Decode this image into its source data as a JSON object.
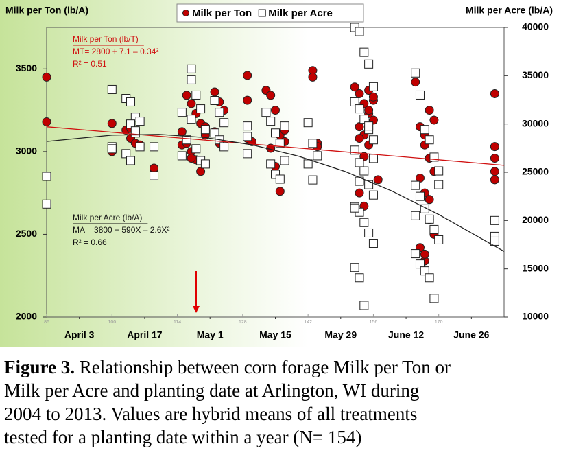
{
  "chart_data": {
    "type": "scatter",
    "y_title": "Milk per Ton (lb/A)",
    "y2_title": "Milk per Acre (lb/A)",
    "xlim": [
      86,
      184
    ],
    "xticks": [
      86,
      100,
      114,
      128,
      142,
      156,
      170
    ],
    "date_ticks": [
      {
        "value": 93,
        "label": "April 3"
      },
      {
        "value": 107,
        "label": "April 17"
      },
      {
        "value": 121,
        "label": "May 1"
      },
      {
        "value": 135,
        "label": "May 15"
      },
      {
        "value": 149,
        "label": "May 29"
      },
      {
        "value": 163,
        "label": "June 12"
      },
      {
        "value": 177,
        "label": "June 26"
      }
    ],
    "ylim": [
      2000,
      3750
    ],
    "yticks": [
      2000,
      2500,
      3000,
      3500
    ],
    "y2lim": [
      10000,
      40000
    ],
    "y2ticks": [
      10000,
      15000,
      20000,
      25000,
      30000,
      35000,
      40000
    ],
    "legend": "top",
    "series": [
      {
        "name": "Milk per Ton",
        "color": "#c00000",
        "marker": "circle",
        "axis": "y",
        "x": [
          86,
          86,
          100,
          100,
          103,
          104,
          105,
          104,
          106,
          109,
          109,
          115,
          115,
          116,
          117,
          118,
          119,
          120,
          116,
          117,
          118,
          119,
          120,
          117,
          122,
          123,
          124,
          122,
          123,
          129,
          129,
          129,
          130,
          133,
          134,
          135,
          136,
          137,
          134,
          135,
          136,
          137,
          143,
          143,
          144,
          144,
          152,
          153,
          154,
          155,
          156,
          153,
          154,
          155,
          156,
          157,
          153,
          154,
          155,
          156,
          153,
          154,
          155,
          156,
          165,
          166,
          167,
          168,
          169,
          166,
          167,
          168,
          169,
          166,
          167,
          168,
          169,
          167,
          168,
          167,
          182,
          182,
          182,
          182,
          182
        ],
        "values": [
          3450,
          3180,
          3170,
          3000,
          3130,
          3080,
          3050,
          3140,
          3040,
          2890,
          2900,
          3120,
          3040,
          3340,
          3290,
          3230,
          3170,
          3100,
          3050,
          3000,
          2950,
          2880,
          3150,
          2960,
          3360,
          3300,
          3250,
          3120,
          3050,
          3460,
          3310,
          3080,
          3060,
          3370,
          3340,
          3250,
          3100,
          3060,
          3020,
          2910,
          2760,
          3130,
          3490,
          3450,
          3050,
          3030,
          3390,
          3350,
          3290,
          3230,
          3190,
          3150,
          3100,
          3040,
          2960,
          2830,
          2750,
          2670,
          3250,
          3310,
          3080,
          2970,
          3370,
          3330,
          3420,
          3150,
          3040,
          2960,
          2880,
          2840,
          2750,
          2590,
          2500,
          2420,
          2340,
          3250,
          3190,
          3100,
          2710,
          2380,
          3350,
          3030,
          2960,
          2830,
          2880
        ]
      },
      {
        "name": "Milk per Acre",
        "color": "#ffffff",
        "marker": "square",
        "axis": "y2",
        "x": [
          86,
          86,
          100,
          100,
          100,
          103,
          104,
          105,
          106,
          104,
          105,
          106,
          103,
          104,
          105,
          109,
          109,
          115,
          115,
          117,
          117,
          118,
          119,
          120,
          116,
          118,
          119,
          120,
          117,
          122,
          123,
          124,
          122,
          123,
          124,
          129,
          129,
          129,
          133,
          134,
          135,
          136,
          137,
          134,
          135,
          136,
          137,
          142,
          143,
          144,
          142,
          143,
          152,
          153,
          154,
          155,
          156,
          152,
          153,
          154,
          155,
          156,
          152,
          153,
          154,
          155,
          156,
          152,
          153,
          154,
          155,
          156,
          152,
          153,
          154,
          155,
          156,
          152,
          153,
          165,
          166,
          167,
          168,
          169,
          170,
          165,
          166,
          167,
          168,
          169,
          170,
          165,
          166,
          167,
          168,
          169,
          170,
          165,
          182,
          182,
          182
        ],
        "values": [
          24570,
          21710,
          33570,
          27640,
          27430,
          32640,
          32290,
          30710,
          30290,
          30000,
          29070,
          27640,
          26930,
          26210,
          29290,
          27640,
          24640,
          31210,
          26710,
          35710,
          34570,
          33000,
          31570,
          29430,
          28360,
          27430,
          26210,
          25860,
          30500,
          32430,
          31210,
          30140,
          29070,
          28360,
          27640,
          29790,
          28710,
          26930,
          31210,
          30290,
          29070,
          28000,
          26210,
          25860,
          24790,
          24290,
          29790,
          30140,
          28000,
          26710,
          25860,
          24210,
          40000,
          39570,
          37430,
          36210,
          33860,
          32290,
          31570,
          30500,
          29430,
          28360,
          27290,
          26000,
          25140,
          23710,
          22640,
          21430,
          20860,
          19790,
          18710,
          17640,
          15140,
          14070,
          11210,
          29790,
          26430,
          21290,
          24070,
          35290,
          33000,
          29430,
          28360,
          26570,
          25140,
          23640,
          22500,
          21210,
          20140,
          19070,
          18000,
          16570,
          15500,
          14790,
          14070,
          11930,
          23710,
          20500,
          20000,
          18360,
          17860
        ]
      },
      {
        "color": "#d01010",
        "marker": "line",
        "axis": "y",
        "x": [
          86,
          184
        ],
        "values": [
          3150,
          2917
        ]
      },
      {
        "color": "#222222",
        "marker": "line",
        "axis": "y2",
        "x": [
          86,
          100,
          110,
          120,
          130,
          140,
          150,
          160,
          170,
          184
        ],
        "values": [
          28190,
          28850,
          28930,
          28600,
          27840,
          26660,
          25070,
          23050,
          20620,
          16800
        ]
      }
    ],
    "annotations": [
      {
        "color": "#d01010",
        "lines": [
          "Milk per Ton (lb/T)",
          "MT= 2800 + 7.1 – 0.34²",
          "R² = 0.51"
        ]
      },
      {
        "color": "#111111",
        "lines": [
          "Milk per Acre (lb/A)",
          "MA = 3800 + 590X – 2.6X²",
          "R² = 0.66"
        ]
      }
    ],
    "caption": {
      "label": "Figure 3.",
      "lines": [
        "Relationship between corn forage Milk per Ton or",
        "Milk per Acre and planting date at Arlington, WI during",
        "2004 to 2013. Values are hybrid means of all treatments",
        "tested for a planting date within a year (N= 154)"
      ]
    }
  }
}
